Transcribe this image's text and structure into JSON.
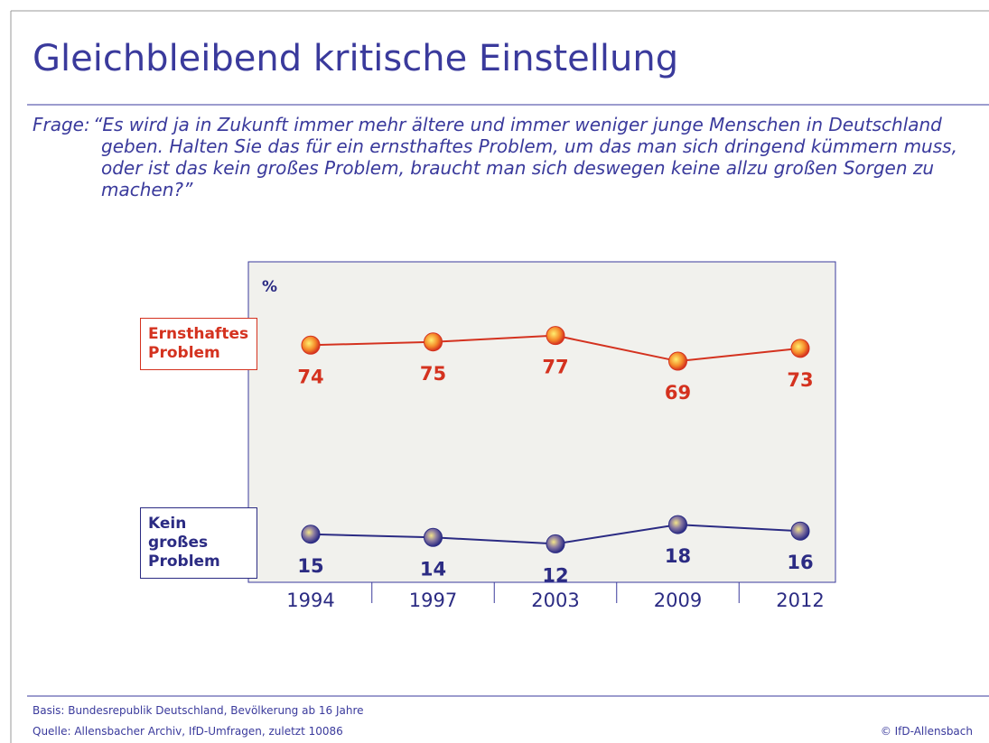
{
  "chart_data": {
    "type": "line",
    "title": "Gleichbleibend kritische Einstellung",
    "question_label": "Frage:",
    "question": "“Es wird ja in Zukunft immer mehr ältere und immer weniger junge Menschen in Deutschland geben. Halten Sie das für ein ernsthaftes Problem, um das man sich dringend kümmern muss, oder ist das kein großes Problem, braucht man sich deswegen keine allzu großen Sorgen zu machen?”",
    "y_label": "%",
    "categories": [
      "1994",
      "1997",
      "2003",
      "2009",
      "2012"
    ],
    "ylim": [
      0,
      100
    ],
    "series": [
      {
        "name": "Ernsthaftes Problem",
        "color": "#d4321f",
        "values": [
          74,
          75,
          77,
          69,
          73
        ]
      },
      {
        "name": "Kein großes Problem",
        "color": "#2b2b83",
        "values": [
          15,
          14,
          12,
          18,
          16
        ]
      }
    ],
    "basis": "Basis: Bundesrepublik Deutschland, Bevölkerung ab 16 Jahre",
    "source": "Quelle: Allensbacher Archiv, IfD-Umfragen, zuletzt 10086",
    "copyright": "© IfD-Allensbach"
  }
}
